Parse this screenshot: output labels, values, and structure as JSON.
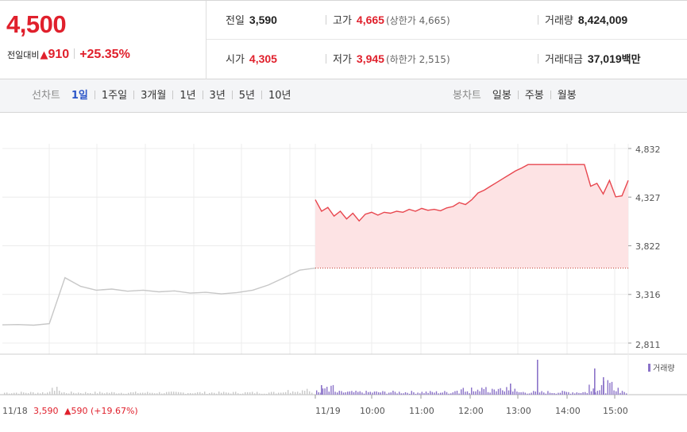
{
  "quote": {
    "price": "4,500",
    "change_label": "전일대비",
    "change_arrow": "▲",
    "change_value": "910",
    "change_pct": "+25.35%",
    "prev_close_label": "전일",
    "prev_close": "3,590",
    "high_label": "고가",
    "high": "4,665",
    "upper_limit": "(상한가 4,665)",
    "volume_label": "거래량",
    "volume": "8,424,009",
    "open_label": "시가",
    "open": "4,305",
    "low_label": "저가",
    "low": "3,945",
    "lower_limit": "(하한가 2,515)",
    "amount_label": "거래대금",
    "amount": "37,019",
    "amount_unit": "백만"
  },
  "toolbar": {
    "line_chart_label": "선차트",
    "periods": [
      "1일",
      "1주일",
      "3개월",
      "1년",
      "3년",
      "5년",
      "10년"
    ],
    "active_period": "1일",
    "candle_chart_label": "봉차트",
    "candle_periods": [
      "일봉",
      "주봉",
      "월봉"
    ]
  },
  "chart_data": {
    "type": "line",
    "title": "",
    "y_ticks": [
      4832,
      4327,
      3822,
      3316,
      2811
    ],
    "y_tick_labels": [
      "4,832",
      "4,327",
      "3,822",
      "3,316",
      "2,811"
    ],
    "ylim": [
      2811,
      4832
    ],
    "prev_close": 3590,
    "x_tick_labels": [
      "11/19",
      "10:00",
      "11:00",
      "12:00",
      "13:00",
      "14:00",
      "15:00"
    ],
    "prev_day_label": "11/18",
    "prev_day_info": "3,590",
    "prev_day_change": "▲590 (+19.67%)",
    "volume_legend": "거래량",
    "colors": {
      "today_line": "#e8474f",
      "today_fill": "#fde3e4",
      "prev_line": "#c7c7c7",
      "volume": "#8b73c9",
      "prev_volume": "#c9c9c9"
    },
    "series": [
      {
        "day": "11/18",
        "x": [
          0,
          5,
          10,
          15,
          20,
          25,
          30,
          35,
          40,
          45,
          50,
          55,
          60,
          65,
          70,
          75,
          80,
          85,
          90,
          95,
          100
        ],
        "y": [
          3000,
          3003,
          2997,
          3012,
          3490,
          3400,
          3360,
          3372,
          3350,
          3360,
          3343,
          3353,
          3330,
          3338,
          3322,
          3336,
          3360,
          3414,
          3490,
          3568,
          3590
        ]
      },
      {
        "day": "11/19",
        "x": [
          0,
          2,
          4,
          6,
          8,
          10,
          12,
          14,
          16,
          18,
          20,
          22,
          24,
          26,
          28,
          30,
          32,
          34,
          36,
          38,
          40,
          42,
          44,
          46,
          48,
          50,
          52,
          54,
          56,
          58,
          60,
          62,
          64,
          66,
          68,
          70,
          72,
          74,
          76,
          78,
          80,
          82,
          84,
          86,
          88,
          90,
          92,
          94,
          96,
          98,
          100
        ],
        "y": [
          4300,
          4180,
          4220,
          4130,
          4180,
          4100,
          4160,
          4080,
          4150,
          4170,
          4140,
          4170,
          4160,
          4180,
          4170,
          4200,
          4180,
          4210,
          4190,
          4200,
          4185,
          4215,
          4230,
          4270,
          4250,
          4300,
          4370,
          4400,
          4440,
          4480,
          4520,
          4560,
          4600,
          4630,
          4665,
          4665,
          4665,
          4665,
          4665,
          4665,
          4665,
          4665,
          4665,
          4665,
          4440,
          4470,
          4360,
          4500,
          4330,
          4340,
          4500
        ]
      }
    ]
  }
}
